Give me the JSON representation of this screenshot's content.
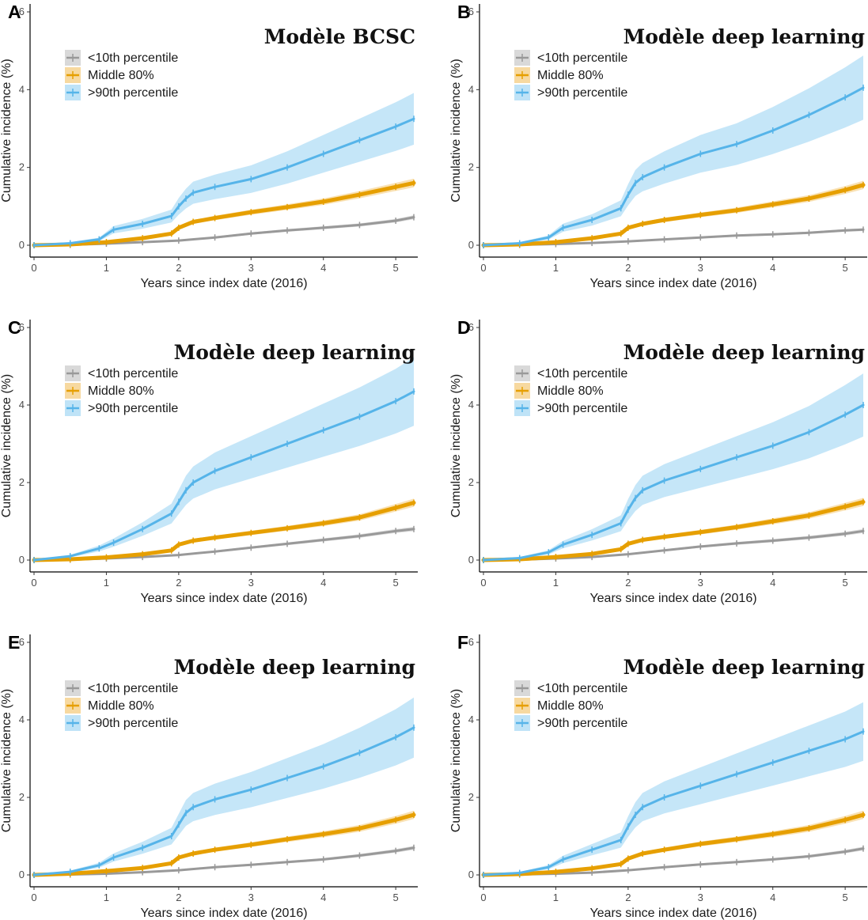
{
  "colors": {
    "low": "#999999",
    "mid": "#E69F00",
    "high": "#56B4E9",
    "low_band": "#d9d9d9",
    "mid_band": "#f7d9a0",
    "high_band": "#bfe3f7"
  },
  "chart_data": [
    {
      "type": "line",
      "panel": "A",
      "title": "Modèle BCSC",
      "xlabel": "Years since index date (2016)",
      "ylabel": "Cumulative incidence (%)",
      "xlim": [
        0,
        5.25
      ],
      "ylim": [
        0,
        6
      ],
      "x_ticks": [
        0,
        1,
        2,
        3,
        4,
        5
      ],
      "y_ticks": [
        0,
        2,
        4,
        6
      ],
      "legend_position": "top-left",
      "grid": false,
      "series": [
        {
          "name": "<10th percentile",
          "key": "low",
          "x": [
            0,
            0.5,
            1,
            1.5,
            2,
            2.5,
            3,
            3.5,
            4,
            4.5,
            5,
            5.25
          ],
          "y": [
            0,
            0.01,
            0.04,
            0.08,
            0.12,
            0.2,
            0.3,
            0.38,
            0.45,
            0.52,
            0.63,
            0.72
          ]
        },
        {
          "name": "Middle 80%",
          "key": "mid",
          "x": [
            0,
            0.5,
            1,
            1.5,
            1.9,
            2,
            2.2,
            2.5,
            3,
            3.5,
            4,
            4.5,
            5,
            5.25
          ],
          "y": [
            0,
            0.02,
            0.08,
            0.18,
            0.3,
            0.45,
            0.6,
            0.7,
            0.85,
            0.98,
            1.12,
            1.3,
            1.5,
            1.6
          ]
        },
        {
          "name": ">90th percentile",
          "key": "high",
          "x": [
            0,
            0.5,
            0.9,
            1.1,
            1.5,
            1.9,
            2,
            2.1,
            2.2,
            2.5,
            3,
            3.5,
            4,
            4.5,
            5,
            5.25
          ],
          "y": [
            0,
            0.05,
            0.15,
            0.4,
            0.55,
            0.75,
            1.0,
            1.2,
            1.35,
            1.5,
            1.7,
            2.0,
            2.35,
            2.7,
            3.05,
            3.25
          ]
        }
      ]
    },
    {
      "type": "line",
      "panel": "B",
      "title": "Modèle deep learning",
      "xlabel": "Years since index date (2016)",
      "ylabel": "Cumulative incidence (%)",
      "xlim": [
        0,
        5.25
      ],
      "ylim": [
        0,
        6
      ],
      "x_ticks": [
        0,
        1,
        2,
        3,
        4,
        5
      ],
      "y_ticks": [
        0,
        2,
        4,
        6
      ],
      "legend_position": "top-left",
      "grid": false,
      "series": [
        {
          "name": "<10th percentile",
          "key": "low",
          "x": [
            0,
            0.5,
            1,
            1.5,
            2,
            2.5,
            3,
            3.5,
            4,
            4.5,
            5,
            5.25
          ],
          "y": [
            0,
            0.01,
            0.03,
            0.06,
            0.1,
            0.15,
            0.2,
            0.25,
            0.28,
            0.32,
            0.38,
            0.4
          ]
        },
        {
          "name": "Middle 80%",
          "key": "mid",
          "x": [
            0,
            0.5,
            1,
            1.5,
            1.9,
            2,
            2.2,
            2.5,
            3,
            3.5,
            4,
            4.5,
            5,
            5.25
          ],
          "y": [
            0,
            0.02,
            0.08,
            0.18,
            0.3,
            0.45,
            0.55,
            0.65,
            0.78,
            0.9,
            1.05,
            1.2,
            1.42,
            1.55
          ]
        },
        {
          "name": ">90th percentile",
          "key": "high",
          "x": [
            0,
            0.5,
            0.9,
            1.1,
            1.5,
            1.9,
            2,
            2.1,
            2.2,
            2.5,
            3,
            3.5,
            4,
            4.5,
            5,
            5.25
          ],
          "y": [
            0,
            0.05,
            0.2,
            0.45,
            0.65,
            0.95,
            1.3,
            1.6,
            1.75,
            2.0,
            2.35,
            2.6,
            2.95,
            3.35,
            3.8,
            4.05
          ]
        }
      ]
    },
    {
      "type": "line",
      "panel": "C",
      "title": "Modèle deep learning",
      "xlabel": "Years since index date (2016)",
      "ylabel": "Cumulative incidence (%)",
      "xlim": [
        0,
        5.25
      ],
      "ylim": [
        0,
        6
      ],
      "x_ticks": [
        0,
        1,
        2,
        3,
        4,
        5
      ],
      "y_ticks": [
        0,
        2,
        4,
        6
      ],
      "legend_position": "top-left",
      "grid": false,
      "series": [
        {
          "name": "<10th percentile",
          "key": "low",
          "x": [
            0,
            0.5,
            1,
            1.5,
            2,
            2.5,
            3,
            3.5,
            4,
            4.5,
            5,
            5.25
          ],
          "y": [
            0,
            0.01,
            0.04,
            0.08,
            0.13,
            0.22,
            0.32,
            0.42,
            0.52,
            0.62,
            0.75,
            0.8
          ]
        },
        {
          "name": "Middle 80%",
          "key": "mid",
          "x": [
            0,
            0.5,
            1,
            1.5,
            1.9,
            2,
            2.2,
            2.5,
            3,
            3.5,
            4,
            4.5,
            5,
            5.25
          ],
          "y": [
            0,
            0.02,
            0.07,
            0.15,
            0.25,
            0.4,
            0.5,
            0.58,
            0.7,
            0.82,
            0.95,
            1.1,
            1.35,
            1.48
          ]
        },
        {
          "name": ">90th percentile",
          "key": "high",
          "x": [
            0,
            0.5,
            0.9,
            1.1,
            1.5,
            1.9,
            2,
            2.1,
            2.2,
            2.5,
            3,
            3.5,
            4,
            4.5,
            5,
            5.25
          ],
          "y": [
            0,
            0.1,
            0.3,
            0.45,
            0.8,
            1.2,
            1.5,
            1.8,
            2.0,
            2.3,
            2.65,
            3.0,
            3.35,
            3.7,
            4.1,
            4.35
          ]
        }
      ]
    },
    {
      "type": "line",
      "panel": "D",
      "title": "Modèle deep learning",
      "xlabel": "Years since index date (2016)",
      "ylabel": "Cumulative incidence (%)",
      "xlim": [
        0,
        5.25
      ],
      "ylim": [
        0,
        6
      ],
      "x_ticks": [
        0,
        1,
        2,
        3,
        4,
        5
      ],
      "y_ticks": [
        0,
        2,
        4,
        6
      ],
      "legend_position": "top-left",
      "grid": false,
      "series": [
        {
          "name": "<10th percentile",
          "key": "low",
          "x": [
            0,
            0.5,
            1,
            1.5,
            2,
            2.5,
            3,
            3.5,
            4,
            4.5,
            5,
            5.25
          ],
          "y": [
            0,
            0.01,
            0.04,
            0.08,
            0.15,
            0.25,
            0.35,
            0.43,
            0.5,
            0.58,
            0.68,
            0.75
          ]
        },
        {
          "name": "Middle 80%",
          "key": "mid",
          "x": [
            0,
            0.5,
            1,
            1.5,
            1.9,
            2,
            2.2,
            2.5,
            3,
            3.5,
            4,
            4.5,
            5,
            5.25
          ],
          "y": [
            0,
            0.02,
            0.08,
            0.16,
            0.28,
            0.42,
            0.52,
            0.6,
            0.72,
            0.85,
            1.0,
            1.15,
            1.38,
            1.5
          ]
        },
        {
          "name": ">90th percentile",
          "key": "high",
          "x": [
            0,
            0.5,
            0.9,
            1.1,
            1.5,
            1.9,
            2,
            2.1,
            2.2,
            2.5,
            3,
            3.5,
            4,
            4.5,
            5,
            5.25
          ],
          "y": [
            0,
            0.05,
            0.2,
            0.4,
            0.65,
            0.95,
            1.3,
            1.6,
            1.8,
            2.05,
            2.35,
            2.65,
            2.95,
            3.3,
            3.75,
            4.0
          ]
        }
      ]
    },
    {
      "type": "line",
      "panel": "E",
      "title": "Modèle deep learning",
      "xlabel": "Years since index date (2016)",
      "ylabel": "Cumulative incidence (%)",
      "xlim": [
        0,
        5.25
      ],
      "ylim": [
        0,
        6
      ],
      "x_ticks": [
        0,
        1,
        2,
        3,
        4,
        5
      ],
      "y_ticks": [
        0,
        2,
        4,
        6
      ],
      "legend_position": "top-left",
      "grid": false,
      "series": [
        {
          "name": "<10th percentile",
          "key": "low",
          "x": [
            0,
            0.5,
            1,
            1.5,
            2,
            2.5,
            3,
            3.5,
            4,
            4.5,
            5,
            5.25
          ],
          "y": [
            0,
            0.01,
            0.03,
            0.07,
            0.12,
            0.2,
            0.26,
            0.33,
            0.4,
            0.5,
            0.62,
            0.7
          ]
        },
        {
          "name": "Middle 80%",
          "key": "mid",
          "x": [
            0,
            0.5,
            1,
            1.5,
            1.9,
            2,
            2.2,
            2.5,
            3,
            3.5,
            4,
            4.5,
            5,
            5.25
          ],
          "y": [
            0,
            0.03,
            0.1,
            0.18,
            0.3,
            0.45,
            0.55,
            0.65,
            0.78,
            0.92,
            1.05,
            1.2,
            1.42,
            1.55
          ]
        },
        {
          "name": ">90th percentile",
          "key": "high",
          "x": [
            0,
            0.5,
            0.9,
            1.1,
            1.5,
            1.9,
            2,
            2.1,
            2.2,
            2.5,
            3,
            3.5,
            4,
            4.5,
            5,
            5.25
          ],
          "y": [
            0,
            0.08,
            0.25,
            0.45,
            0.7,
            1.0,
            1.3,
            1.6,
            1.75,
            1.95,
            2.2,
            2.5,
            2.8,
            3.15,
            3.55,
            3.8
          ]
        }
      ]
    },
    {
      "type": "line",
      "panel": "F",
      "title": "Modèle deep learning",
      "xlabel": "Years since index date (2016)",
      "ylabel": "Cumulative incidence (%)",
      "xlim": [
        0,
        5.25
      ],
      "ylim": [
        0,
        6
      ],
      "x_ticks": [
        0,
        1,
        2,
        3,
        4,
        5
      ],
      "y_ticks": [
        0,
        2,
        4,
        6
      ],
      "legend_position": "top-left",
      "grid": false,
      "series": [
        {
          "name": "<10th percentile",
          "key": "low",
          "x": [
            0,
            0.5,
            1,
            1.5,
            2,
            2.5,
            3,
            3.5,
            4,
            4.5,
            5,
            5.25
          ],
          "y": [
            0,
            0.01,
            0.03,
            0.06,
            0.12,
            0.2,
            0.27,
            0.33,
            0.4,
            0.48,
            0.6,
            0.68
          ]
        },
        {
          "name": "Middle 80%",
          "key": "mid",
          "x": [
            0,
            0.5,
            1,
            1.5,
            1.9,
            2,
            2.2,
            2.5,
            3,
            3.5,
            4,
            4.5,
            5,
            5.25
          ],
          "y": [
            0,
            0.02,
            0.08,
            0.17,
            0.28,
            0.42,
            0.55,
            0.65,
            0.8,
            0.92,
            1.05,
            1.2,
            1.42,
            1.55
          ]
        },
        {
          "name": ">90th percentile",
          "key": "high",
          "x": [
            0,
            0.5,
            0.9,
            1.1,
            1.5,
            1.9,
            2,
            2.1,
            2.2,
            2.5,
            3,
            3.5,
            4,
            4.5,
            5,
            5.25
          ],
          "y": [
            0,
            0.05,
            0.2,
            0.4,
            0.65,
            0.9,
            1.25,
            1.55,
            1.75,
            2.0,
            2.3,
            2.6,
            2.9,
            3.2,
            3.5,
            3.7
          ]
        }
      ]
    }
  ]
}
